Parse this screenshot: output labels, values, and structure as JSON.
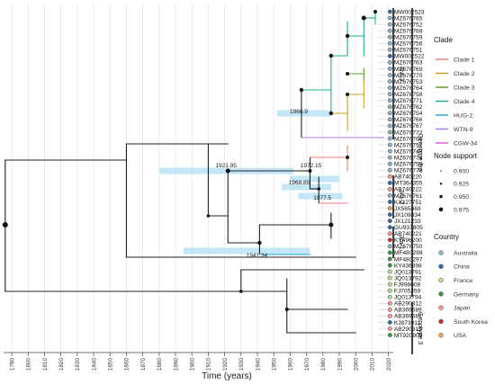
{
  "axis": {
    "label": "Time (years)",
    "ticks": [
      "1790",
      "1800",
      "1810",
      "1820",
      "1830",
      "1840",
      "1850",
      "1860",
      "1870",
      "1880",
      "1890",
      "1900",
      "1910",
      "1920",
      "1930",
      "1940",
      "1950",
      "1960",
      "1970",
      "1980",
      "1990",
      "2000",
      "2010",
      "2020"
    ],
    "range": [
      1785,
      2023
    ]
  },
  "tips": [
    {
      "label": "MW002523",
      "country": "China"
    },
    {
      "label": "MZ676765",
      "country": "Australia"
    },
    {
      "label": "MZ676752",
      "country": "Australia"
    },
    {
      "label": "MZ676768",
      "country": "Australia"
    },
    {
      "label": "MZ676759",
      "country": "Australia"
    },
    {
      "label": "MZ676756",
      "country": "Australia"
    },
    {
      "label": "MZ676751",
      "country": "Australia"
    },
    {
      "label": "MW002522",
      "country": "China"
    },
    {
      "label": "MZ676763",
      "country": "Australia"
    },
    {
      "label": "MZ676769",
      "country": "Australia"
    },
    {
      "label": "MZ676770",
      "country": "Australia"
    },
    {
      "label": "MZ676753",
      "country": "Australia"
    },
    {
      "label": "MZ676764",
      "country": "Australia"
    },
    {
      "label": "MZ676758",
      "country": "Australia"
    },
    {
      "label": "MZ676771",
      "country": "Australia"
    },
    {
      "label": "MZ676762",
      "country": "Australia"
    },
    {
      "label": "MZ676754",
      "country": "Australia"
    },
    {
      "label": "MZ676766",
      "country": "Australia"
    },
    {
      "label": "MZ676767",
      "country": "Australia"
    },
    {
      "label": "MZ676772",
      "country": "Australia"
    },
    {
      "label": "MZ676760",
      "country": "Australia"
    },
    {
      "label": "MZ676757",
      "country": "Australia"
    },
    {
      "label": "MZ676749",
      "country": "Australia"
    },
    {
      "label": "MZ676774",
      "country": "Australia"
    },
    {
      "label": "MZ676755",
      "country": "Australia"
    },
    {
      "label": "MZ676773",
      "country": "Australia"
    },
    {
      "label": "AB740220",
      "country": "Japan"
    },
    {
      "label": "MT364355",
      "country": "China"
    },
    {
      "label": "AB740222",
      "country": "Japan"
    },
    {
      "label": "MZ676761",
      "country": "Australia"
    },
    {
      "label": "KX227751",
      "country": "China"
    },
    {
      "label": "JX565469",
      "country": "USA"
    },
    {
      "label": "JX109834",
      "country": "China"
    },
    {
      "label": "JX121233",
      "country": "China"
    },
    {
      "label": "GU937805",
      "country": "China"
    },
    {
      "label": "AB740221",
      "country": "Japan"
    },
    {
      "label": "KY496200",
      "country": "South Korea"
    },
    {
      "label": "MZ676750",
      "country": "Australia"
    },
    {
      "label": "MF480298",
      "country": "Germany"
    },
    {
      "label": "MF480297",
      "country": "Germany"
    },
    {
      "label": "KY436898",
      "country": "Germany"
    },
    {
      "label": "JQ013791",
      "country": "France"
    },
    {
      "label": "JQ013792",
      "country": "France"
    },
    {
      "label": "FJ998008",
      "country": "France"
    },
    {
      "label": "FJ705359",
      "country": "France"
    },
    {
      "label": "JQ013794",
      "country": "France"
    },
    {
      "label": "AB290312",
      "country": "Japan"
    },
    {
      "label": "AB369689",
      "country": "Japan"
    },
    {
      "label": "AB369687",
      "country": "Japan"
    },
    {
      "label": "KJ873911",
      "country": "China"
    },
    {
      "label": "AB290313",
      "country": "Japan"
    },
    {
      "label": "MT920909",
      "country": "Germany"
    }
  ],
  "node_dates": [
    {
      "label": "1966.9",
      "year": 1966.9
    },
    {
      "label": "1921.95",
      "year": 1921.95
    },
    {
      "label": "1972.15",
      "year": 1972.15
    },
    {
      "label": "1968.85",
      "year": 1968.85
    },
    {
      "label": "1977.5",
      "year": 1977.5
    },
    {
      "label": "1941.34",
      "year": 1941.34
    }
  ],
  "clade_bars": [
    {
      "label": "3ra-3"
    },
    {
      "label": "3ra-2"
    },
    {
      "label": "3ra-1"
    },
    {
      "label": "Genotype 3ra"
    },
    {
      "label": "Genotype 3"
    }
  ],
  "legend_clade": {
    "title": "Clade",
    "items": [
      {
        "label": "Clade 1",
        "color": "#f07f79"
      },
      {
        "label": "Clade 2",
        "color": "#c9a227"
      },
      {
        "label": "Clade 3",
        "color": "#5aa32e"
      },
      {
        "label": "Clade 4",
        "color": "#1bb08f"
      },
      {
        "label": "HUG-2",
        "color": "#22a9d6"
      },
      {
        "label": "WTN-9",
        "color": "#a47ff0"
      },
      {
        "label": "CGW-34",
        "color": "#e75bd2"
      }
    ]
  },
  "legend_support": {
    "title": "Node support",
    "items": [
      "0.900",
      "0.925",
      "0.950",
      "0.975"
    ]
  },
  "legend_country": {
    "title": "Country",
    "items": [
      {
        "label": "Australia",
        "color": "#8fb5c9"
      },
      {
        "label": "China",
        "color": "#2f6ca7"
      },
      {
        "label": "France",
        "color": "#b8e08f"
      },
      {
        "label": "Germany",
        "color": "#3a9a3a"
      },
      {
        "label": "Japan",
        "color": "#f59a9a"
      },
      {
        "label": "South Korea",
        "color": "#d7281f"
      },
      {
        "label": "USA",
        "color": "#f3a25b"
      }
    ]
  }
}
